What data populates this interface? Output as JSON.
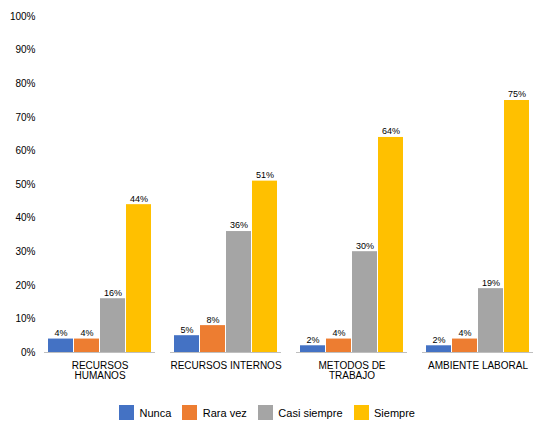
{
  "chart_data": {
    "type": "bar",
    "categories": [
      "RECURSOS\nHUMANOS",
      "RECURSOS INTERNOS",
      "METODOS DE\nTRABAJO",
      "AMBIENTE LABORAL"
    ],
    "series": [
      {
        "name": "Nunca",
        "color": "#4472C4",
        "values": [
          4,
          5,
          2,
          2
        ],
        "value_labels": [
          "4%",
          "5%",
          "2%",
          "2%"
        ]
      },
      {
        "name": "Rara vez",
        "color": "#ED7D31",
        "values": [
          4,
          8,
          4,
          4
        ],
        "value_labels": [
          "4%",
          "8%",
          "4%",
          "4%"
        ]
      },
      {
        "name": "Casi siempre",
        "color": "#A5A5A5",
        "values": [
          16,
          36,
          30,
          19
        ],
        "value_labels": [
          "16%",
          "36%",
          "30%",
          "19%"
        ]
      },
      {
        "name": "Siempre",
        "color": "#FFC000",
        "values": [
          44,
          51,
          64,
          75
        ],
        "value_labels": [
          "44%",
          "51%",
          "64%",
          "75%"
        ]
      }
    ],
    "ylim": [
      0,
      100
    ],
    "yticks": [
      {
        "value": 0,
        "label": "0%"
      },
      {
        "value": 10,
        "label": "10%"
      },
      {
        "value": 20,
        "label": "20%"
      },
      {
        "value": 30,
        "label": "30%"
      },
      {
        "value": 40,
        "label": "40%"
      },
      {
        "value": 50,
        "label": "50%"
      },
      {
        "value": 60,
        "label": "60%"
      },
      {
        "value": 70,
        "label": "70%"
      },
      {
        "value": 80,
        "label": "80%"
      },
      {
        "value": 90,
        "label": "90%"
      },
      {
        "value": 100,
        "label": "100%"
      }
    ],
    "grid": false,
    "legend": "bottom",
    "data_labels": true
  }
}
